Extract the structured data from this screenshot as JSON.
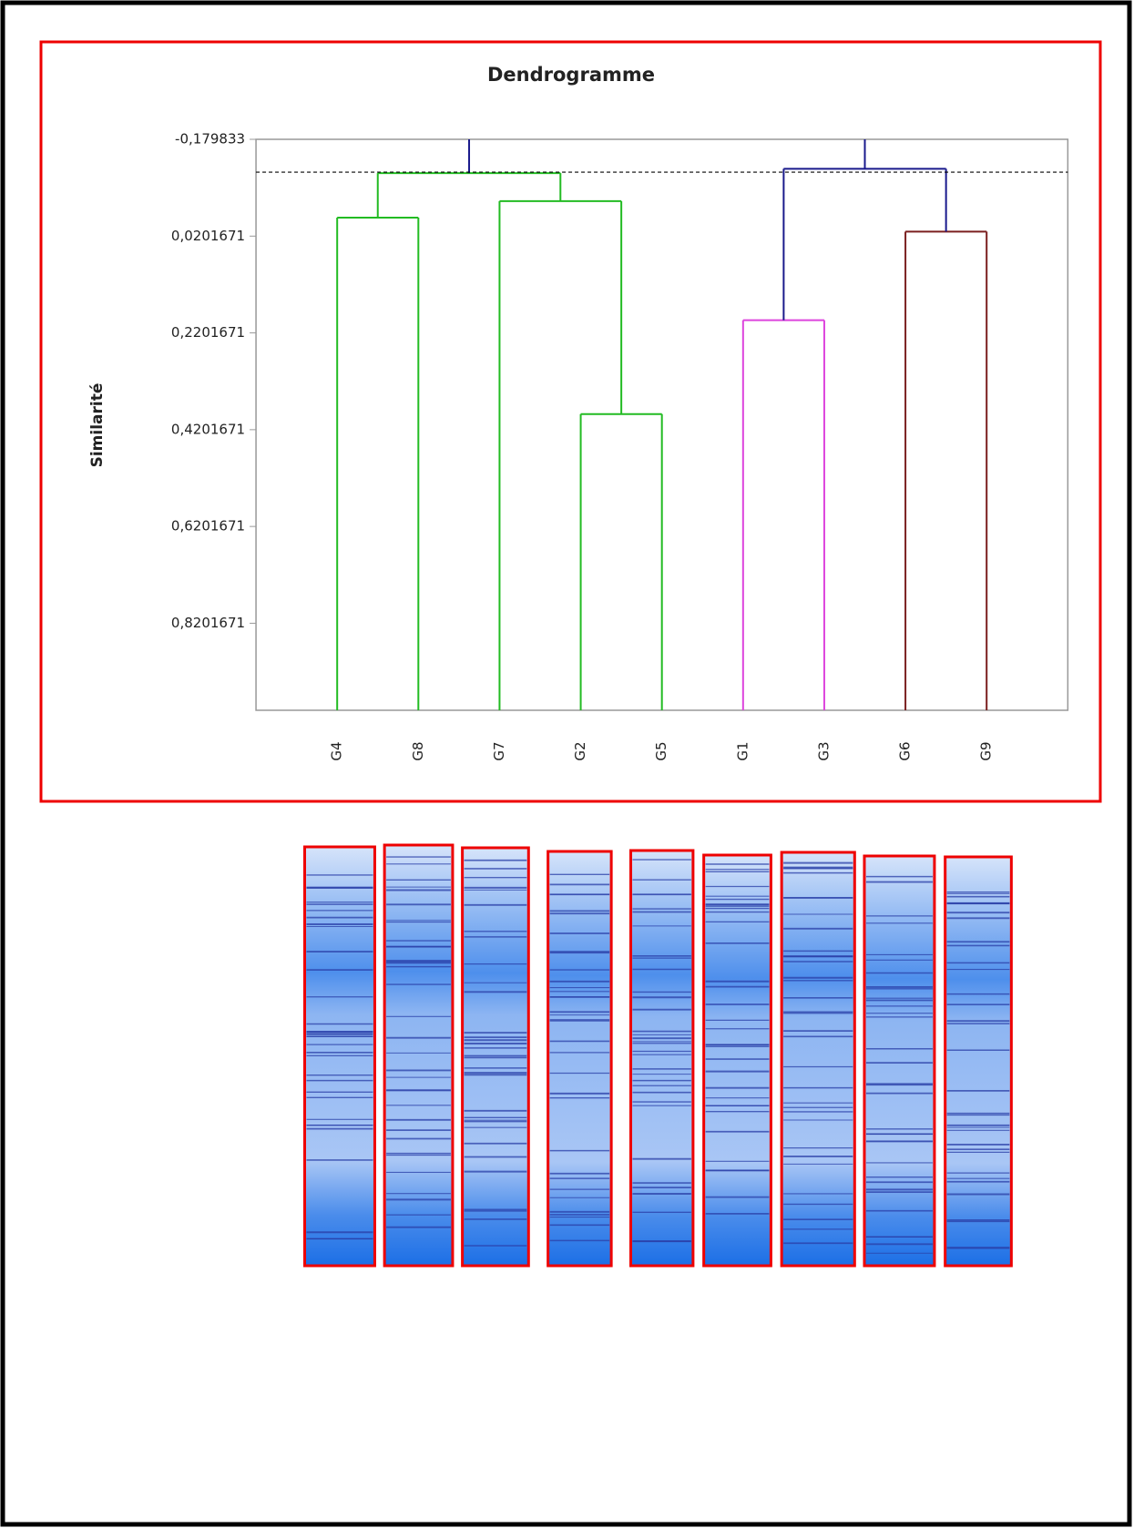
{
  "chart_data": {
    "type": "dendrogram",
    "title": "Dendrogramme",
    "y_label": "Similarité",
    "categories": [
      "G4",
      "G8",
      "G7",
      "G2",
      "G5",
      "G1",
      "G3",
      "G6",
      "G9"
    ],
    "merges": [
      {
        "children": [
          0,
          1
        ],
        "height": -0.018,
        "color": "#22bb22"
      },
      {
        "children": [
          3,
          4
        ],
        "height": 0.388,
        "color": "#22bb22"
      },
      {
        "children": [
          2,
          10
        ],
        "height": -0.052,
        "color": "#22bb22"
      },
      {
        "children": [
          9,
          11
        ],
        "height": -0.11,
        "color": "#22bb22"
      },
      {
        "children": [
          5,
          6
        ],
        "height": 0.194,
        "color": "#dd44dd"
      },
      {
        "children": [
          7,
          8
        ],
        "height": 0.011,
        "color": "#7a1f1f"
      },
      {
        "children": [
          13,
          14
        ],
        "height": -0.119,
        "color": "#1a1a8c"
      }
    ],
    "root_color": "#1a1a8c",
    "threshold": -0.112,
    "ylim": [
      -0.179833,
      1.0
    ],
    "yticks": [
      {
        "value": -0.179833,
        "label": "-0,179833"
      },
      {
        "value": 0.0201671,
        "label": "0,0201671"
      },
      {
        "value": 0.2201671,
        "label": "0,2201671"
      },
      {
        "value": 0.4201671,
        "label": "0,4201671"
      },
      {
        "value": 0.6201671,
        "label": "0,6201671"
      },
      {
        "value": 0.8201671,
        "label": "0,8201671"
      }
    ]
  }
}
